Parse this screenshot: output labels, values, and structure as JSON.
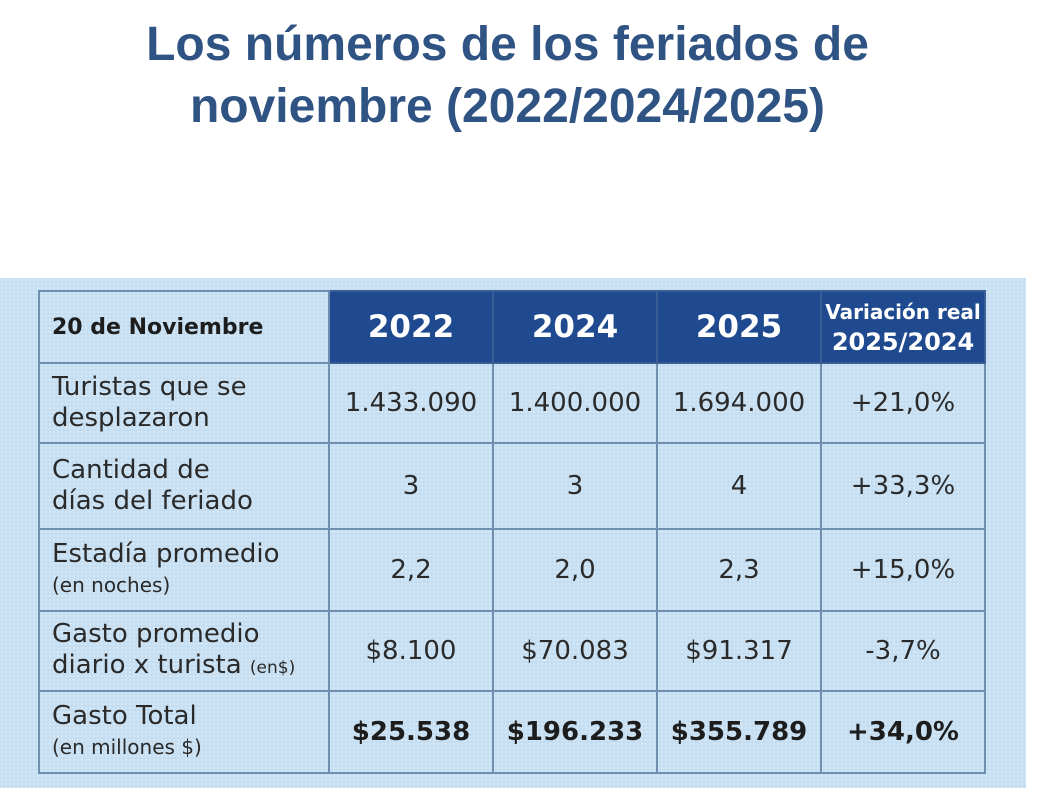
{
  "title": {
    "line1": "Los números de los feriados de",
    "line2": "noviembre (2022/2024/2025)"
  },
  "table": {
    "corner": "20 de Noviembre",
    "years": [
      "2022",
      "2024",
      "2025"
    ],
    "variation_header_1": "Variación real",
    "variation_header_2": "2025/2024",
    "rows": [
      {
        "label_line1": "Turistas que se",
        "label_line2": "desplazaron",
        "label_note": "",
        "values": [
          "1.433.090",
          "1.400.000",
          "1.694.000"
        ],
        "variation": "+21,0%"
      },
      {
        "label_line1": "Cantidad de",
        "label_line2": "días del feriado",
        "label_note": "",
        "values": [
          "3",
          "3",
          "4"
        ],
        "variation": "+33,3%"
      },
      {
        "label_line1": "Estadía promedio",
        "label_line2": "(en noches)",
        "label_note": "",
        "values": [
          "2,2",
          "2,0",
          "2,3"
        ],
        "variation": "+15,0%"
      },
      {
        "label_line1": "Gasto promedio",
        "label_line2": "diario x turista",
        "label_note": "(en$)",
        "values": [
          "$8.100",
          "$70.083",
          "$91.317"
        ],
        "variation": "-3,7%"
      },
      {
        "label_line1": "Gasto Total",
        "label_line2": "(en millones $)",
        "label_note": "",
        "values": [
          "$25.538",
          "$196.233",
          "$355.789"
        ],
        "variation": "+34,0%"
      }
    ]
  },
  "colors": {
    "title": "#2f5383",
    "header_bg": "#1f4a8f",
    "panel_bg": "#c5def1"
  }
}
